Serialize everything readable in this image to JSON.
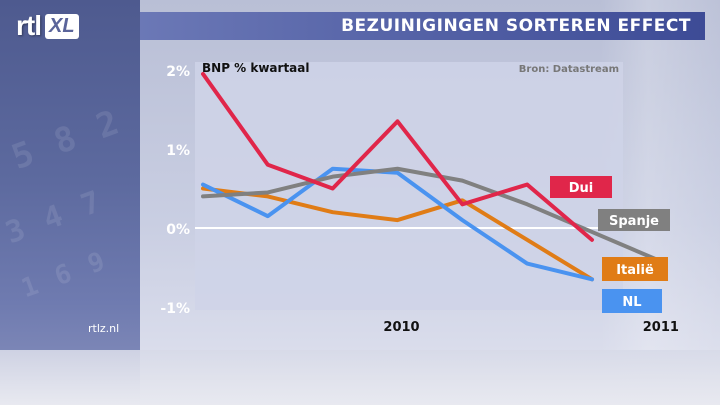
{
  "logo": {
    "rtl": "rtl",
    "xl": "XL"
  },
  "headline": "BEZUINIGINGEN SORTEREN EFFECT",
  "source_url": "rtlz.nl",
  "chart_data": {
    "type": "line",
    "title": "BNP % kwartaal",
    "source": "Bron: Datastream",
    "ylim": [
      -1,
      2
    ],
    "y_ticks": [
      2,
      1,
      0,
      -1
    ],
    "y_tick_labels": [
      "2%",
      "1%",
      "0%",
      "-1%"
    ],
    "x_labels": [
      "2010",
      "2011"
    ],
    "x": [
      "2009 Q2",
      "2009 Q3",
      "2009 Q4",
      "2010 Q1",
      "2010 Q2",
      "2010 Q3",
      "2010 Q4",
      "2011 Q1",
      "2011 Q2"
    ],
    "zero_line": true,
    "series": [
      {
        "name": "Dui",
        "color": "#e0264a",
        "values": [
          1.95,
          0.8,
          0.5,
          1.35,
          0.3,
          0.55,
          -0.15,
          null,
          null
        ]
      },
      {
        "name": "Spanje",
        "color": "#808080",
        "values": [
          0.4,
          0.45,
          0.65,
          0.75,
          0.6,
          0.3,
          -0.05,
          -0.4,
          null
        ]
      },
      {
        "name": "Italië",
        "color": "#e07c16",
        "values": [
          0.5,
          0.4,
          0.2,
          0.1,
          0.35,
          -0.15,
          -0.65,
          null,
          null
        ]
      },
      {
        "name": "NL",
        "color": "#4a93f0",
        "values": [
          0.55,
          0.15,
          0.75,
          0.7,
          0.1,
          -0.45,
          -0.65,
          null,
          null
        ]
      }
    ]
  }
}
